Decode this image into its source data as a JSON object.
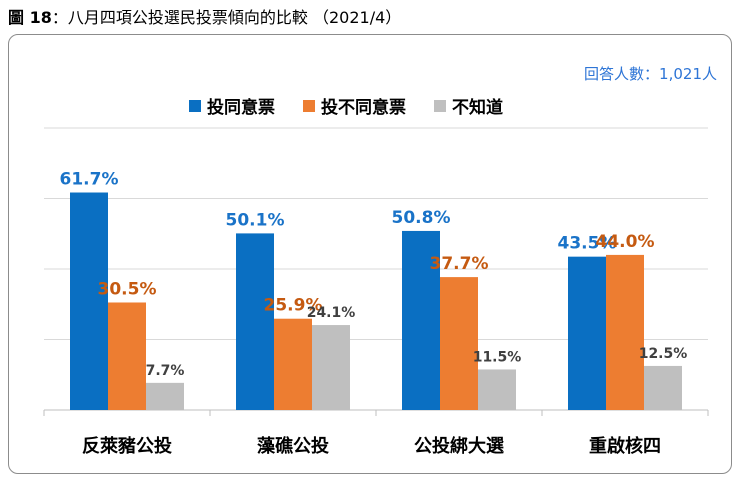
{
  "figure": {
    "label": "圖 18",
    "separator": "：",
    "title": "八月四項公投選民投票傾向的比較",
    "date": "（2021/4）"
  },
  "sample_size": "回答人數：1,021人",
  "chart_data": {
    "type": "bar",
    "title": "八月四項公投選民投票傾向的比較",
    "categories": [
      "反萊豬公投",
      "藻礁公投",
      "公投綁大選",
      "重啟核四"
    ],
    "series": [
      {
        "name": "投同意票",
        "color": "#0a6fc2",
        "label_color": "#1a73c8",
        "values": [
          61.7,
          50.1,
          50.8,
          43.5
        ],
        "labels": [
          "61.7%",
          "50.1%",
          "50.8%",
          "43.5%"
        ]
      },
      {
        "name": "投不同意票",
        "color": "#ed7d31",
        "label_color": "#c55a11",
        "values": [
          30.5,
          25.9,
          37.7,
          44.0
        ],
        "labels": [
          "30.5%",
          "25.9%",
          "37.7%",
          "44.0%"
        ]
      },
      {
        "name": "不知道",
        "color": "#bfbfbf",
        "label_color": "#404040",
        "values": [
          7.7,
          24.1,
          11.5,
          12.5
        ],
        "labels": [
          "7.7%",
          "24.1%",
          "11.5%",
          "12.5%"
        ]
      }
    ],
    "ylim": [
      0,
      80
    ],
    "grid": true,
    "legend": "top-center"
  }
}
